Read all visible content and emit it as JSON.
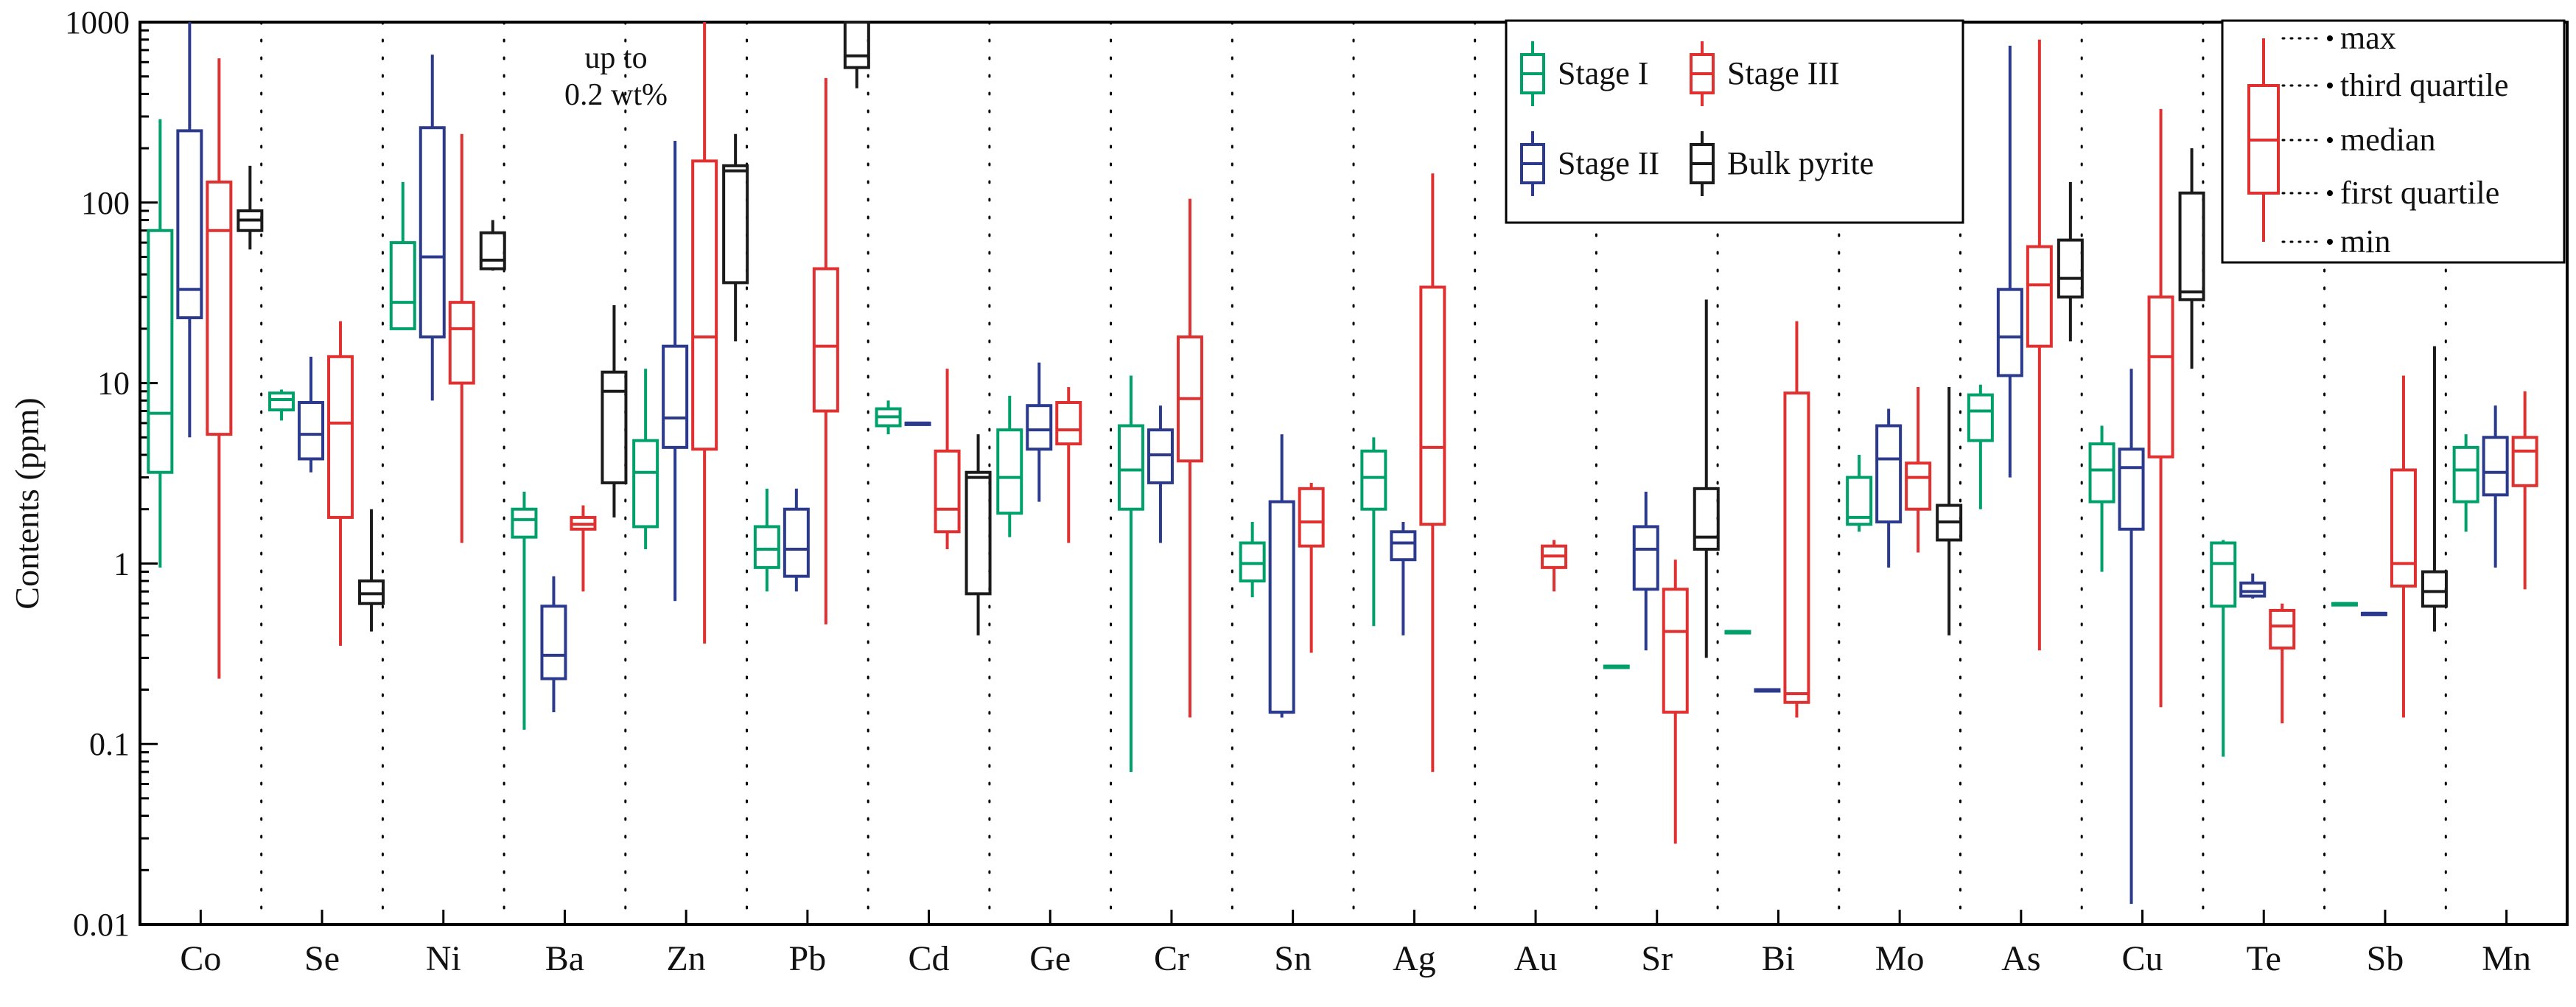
{
  "chart_data": {
    "type": "boxplot",
    "title": "",
    "ylabel": "Contents (ppm)",
    "xlabel": "",
    "yscale": "log",
    "ylim": [
      0.01,
      1000
    ],
    "yticks": [
      {
        "value": 0.01,
        "label": "0.01"
      },
      {
        "value": 0.1,
        "label": "0.1"
      },
      {
        "value": 1,
        "label": "1"
      },
      {
        "value": 10,
        "label": "10"
      },
      {
        "value": 100,
        "label": "100"
      },
      {
        "value": 1000,
        "label": "1000"
      }
    ],
    "categories": [
      "Co",
      "Se",
      "Ni",
      "Ba",
      "Zn",
      "Pb",
      "Cd",
      "Ge",
      "Cr",
      "Sn",
      "Ag",
      "Au",
      "Sr",
      "Bi",
      "Mo",
      "As",
      "Cu",
      "Te",
      "Sb",
      "Mn"
    ],
    "series": [
      {
        "name": "Stage I",
        "legend_label": "Stage I",
        "color": "#00a06a",
        "slot": 0,
        "values": [
          {
            "cat": "Co",
            "min": 0.95,
            "q1": 3.2,
            "median": 6.8,
            "q3": 70,
            "max": 290
          },
          {
            "cat": "Se",
            "min": 6.2,
            "q1": 7.1,
            "median": 8.1,
            "q3": 8.8,
            "max": 9.2
          },
          {
            "cat": "Ni",
            "min": 20,
            "q1": 20,
            "median": 28,
            "q3": 60,
            "max": 130
          },
          {
            "cat": "Ba",
            "min": 0.12,
            "q1": 1.4,
            "median": 1.75,
            "q3": 2.0,
            "max": 2.5
          },
          {
            "cat": "Zn",
            "min": 1.2,
            "q1": 1.6,
            "median": 3.2,
            "q3": 4.8,
            "max": 12
          },
          {
            "cat": "Pb",
            "min": 0.7,
            "q1": 0.95,
            "median": 1.2,
            "q3": 1.6,
            "max": 2.6
          },
          {
            "cat": "Cd",
            "min": 5.2,
            "q1": 5.8,
            "median": 6.5,
            "q3": 7.2,
            "max": 8.0
          },
          {
            "cat": "Ge",
            "min": 1.4,
            "q1": 1.9,
            "median": 3.0,
            "q3": 5.5,
            "max": 8.5
          },
          {
            "cat": "Cr",
            "min": 0.07,
            "q1": 2.0,
            "median": 3.3,
            "q3": 5.8,
            "max": 11
          },
          {
            "cat": "Sn",
            "min": 0.65,
            "q1": 0.8,
            "median": 1.0,
            "q3": 1.3,
            "max": 1.7
          },
          {
            "cat": "Ag",
            "min": 0.45,
            "q1": 2.0,
            "median": 3.0,
            "q3": 4.2,
            "max": 5.0
          },
          {
            "cat": "Sr",
            "min": 0.27,
            "q1": 0.27,
            "median": 0.27,
            "q3": 0.27,
            "max": 0.27
          },
          {
            "cat": "Bi",
            "min": 0.42,
            "q1": 0.42,
            "median": 0.42,
            "q3": 0.42,
            "max": 0.42
          },
          {
            "cat": "Mo",
            "min": 1.5,
            "q1": 1.65,
            "median": 1.8,
            "q3": 3.0,
            "max": 4.0
          },
          {
            "cat": "As",
            "min": 2.0,
            "q1": 4.8,
            "median": 7.0,
            "q3": 8.6,
            "max": 9.8
          },
          {
            "cat": "Cu",
            "min": 0.9,
            "q1": 2.2,
            "median": 3.3,
            "q3": 4.6,
            "max": 5.8
          },
          {
            "cat": "Te",
            "min": 0.085,
            "q1": 0.58,
            "median": 1.0,
            "q3": 1.3,
            "max": 1.35
          },
          {
            "cat": "Sb",
            "min": 0.6,
            "q1": 0.6,
            "median": 0.6,
            "q3": 0.6,
            "max": 0.6
          },
          {
            "cat": "Mn",
            "min": 1.5,
            "q1": 2.2,
            "median": 3.3,
            "q3": 4.4,
            "max": 5.2
          }
        ]
      },
      {
        "name": "Stage II",
        "legend_label": "Stage II",
        "color": "#2b3a8c",
        "slot": 1,
        "values": [
          {
            "cat": "Co",
            "min": 5,
            "q1": 23,
            "median": 33,
            "q3": 250,
            "max": 1000
          },
          {
            "cat": "Se",
            "min": 3.2,
            "q1": 3.8,
            "median": 5.2,
            "q3": 7.8,
            "max": 14
          },
          {
            "cat": "Ni",
            "min": 8,
            "q1": 18,
            "median": 50,
            "q3": 260,
            "max": 660
          },
          {
            "cat": "Ba",
            "min": 0.15,
            "q1": 0.23,
            "median": 0.31,
            "q3": 0.58,
            "max": 0.85
          },
          {
            "cat": "Zn",
            "min": 0.62,
            "q1": 4.4,
            "median": 6.4,
            "q3": 16,
            "max": 220
          },
          {
            "cat": "Pb",
            "min": 0.7,
            "q1": 0.85,
            "median": 1.2,
            "q3": 2.0,
            "max": 2.6
          },
          {
            "cat": "Cd",
            "min": 5.8,
            "q1": 5.9,
            "median": 6.0,
            "q3": 6.0,
            "max": 6.0
          },
          {
            "cat": "Ge",
            "min": 2.2,
            "q1": 4.3,
            "median": 5.5,
            "q3": 7.5,
            "max": 13
          },
          {
            "cat": "Cr",
            "min": 1.3,
            "q1": 2.8,
            "median": 4.0,
            "q3": 5.5,
            "max": 7.5
          },
          {
            "cat": "Sn",
            "min": 0.14,
            "q1": 0.15,
            "median": 0.15,
            "q3": 2.2,
            "max": 5.2
          },
          {
            "cat": "Ag",
            "min": 0.4,
            "q1": 1.05,
            "median": 1.3,
            "q3": 1.5,
            "max": 1.7
          },
          {
            "cat": "Sr",
            "min": 0.33,
            "q1": 0.72,
            "median": 1.2,
            "q3": 1.6,
            "max": 2.5
          },
          {
            "cat": "Bi",
            "min": 0.2,
            "q1": 0.2,
            "median": 0.2,
            "q3": 0.2,
            "max": 0.2
          },
          {
            "cat": "Mo",
            "min": 0.95,
            "q1": 1.7,
            "median": 3.8,
            "q3": 5.8,
            "max": 7.2
          },
          {
            "cat": "As",
            "min": 3.0,
            "q1": 11,
            "median": 18,
            "q3": 33,
            "max": 740
          },
          {
            "cat": "Cu",
            "min": 0.013,
            "q1": 1.55,
            "median": 3.4,
            "q3": 4.3,
            "max": 12
          },
          {
            "cat": "Te",
            "min": 0.64,
            "q1": 0.66,
            "median": 0.7,
            "q3": 0.78,
            "max": 0.88
          },
          {
            "cat": "Sb",
            "min": 0.53,
            "q1": 0.53,
            "median": 0.53,
            "q3": 0.53,
            "max": 0.53
          },
          {
            "cat": "Mn",
            "min": 0.95,
            "q1": 2.4,
            "median": 3.2,
            "q3": 5.0,
            "max": 7.5
          }
        ]
      },
      {
        "name": "Stage III",
        "legend_label": "Stage III",
        "color": "#e03030",
        "slot": 2,
        "values": [
          {
            "cat": "Co",
            "min": 0.23,
            "q1": 5.2,
            "median": 70,
            "q3": 130,
            "max": 630
          },
          {
            "cat": "Se",
            "min": 0.35,
            "q1": 1.8,
            "median": 6.0,
            "q3": 14,
            "max": 22
          },
          {
            "cat": "Ni",
            "min": 1.3,
            "q1": 10,
            "median": 20,
            "q3": 28,
            "max": 240
          },
          {
            "cat": "Ba",
            "min": 0.7,
            "q1": 1.55,
            "median": 1.65,
            "q3": 1.8,
            "max": 2.1
          },
          {
            "cat": "Zn",
            "min": 0.36,
            "q1": 4.3,
            "median": 18,
            "q3": 170,
            "max": 1000
          },
          {
            "cat": "Pb",
            "min": 0.46,
            "q1": 7.0,
            "median": 16,
            "q3": 43,
            "max": 490
          },
          {
            "cat": "Cd",
            "min": 1.2,
            "q1": 1.5,
            "median": 2.0,
            "q3": 4.2,
            "max": 12
          },
          {
            "cat": "Ge",
            "min": 1.3,
            "q1": 4.6,
            "median": 5.5,
            "q3": 7.8,
            "max": 9.5
          },
          {
            "cat": "Cr",
            "min": 0.14,
            "q1": 3.7,
            "median": 8.2,
            "q3": 18,
            "max": 105
          },
          {
            "cat": "Sn",
            "min": 0.32,
            "q1": 1.25,
            "median": 1.7,
            "q3": 2.6,
            "max": 2.8
          },
          {
            "cat": "Ag",
            "min": 0.07,
            "q1": 1.65,
            "median": 4.4,
            "q3": 34,
            "max": 145
          },
          {
            "cat": "Au",
            "min": 0.7,
            "q1": 0.95,
            "median": 1.1,
            "q3": 1.25,
            "max": 1.35
          },
          {
            "cat": "Sr",
            "min": 0.028,
            "q1": 0.15,
            "median": 0.42,
            "q3": 0.72,
            "max": 1.05
          },
          {
            "cat": "Bi",
            "min": 0.14,
            "q1": 0.17,
            "median": 0.19,
            "q3": 8.8,
            "max": 22
          },
          {
            "cat": "Mo",
            "min": 1.15,
            "q1": 2.0,
            "median": 3.0,
            "q3": 3.6,
            "max": 9.5
          },
          {
            "cat": "As",
            "min": 0.33,
            "q1": 16,
            "median": 35,
            "q3": 57,
            "max": 800
          },
          {
            "cat": "Cu",
            "min": 0.16,
            "q1": 3.9,
            "median": 14,
            "q3": 30,
            "max": 330
          },
          {
            "cat": "Te",
            "min": 0.13,
            "q1": 0.34,
            "median": 0.45,
            "q3": 0.55,
            "max": 0.6
          },
          {
            "cat": "Sb",
            "min": 0.14,
            "q1": 0.75,
            "median": 1.0,
            "q3": 3.3,
            "max": 11
          },
          {
            "cat": "Mn",
            "min": 0.72,
            "q1": 2.7,
            "median": 4.2,
            "q3": 5.0,
            "max": 9.0
          }
        ]
      },
      {
        "name": "Bulk pyrite",
        "legend_label": "Bulk pyrite",
        "color": "#1a1a1a",
        "slot": 3,
        "values": [
          {
            "cat": "Co",
            "min": 55,
            "q1": 70,
            "median": 80,
            "q3": 90,
            "max": 160
          },
          {
            "cat": "Se",
            "min": 0.42,
            "q1": 0.6,
            "median": 0.68,
            "q3": 0.8,
            "max": 2.0
          },
          {
            "cat": "Ni",
            "min": 42,
            "q1": 43,
            "median": 48,
            "q3": 68,
            "max": 80
          },
          {
            "cat": "Ba",
            "min": 1.8,
            "q1": 2.8,
            "median": 9.0,
            "q3": 11.5,
            "max": 27
          },
          {
            "cat": "Zn",
            "min": 17,
            "q1": 36,
            "median": 150,
            "q3": 160,
            "max": 240
          },
          {
            "cat": "Pb",
            "min": 430,
            "q1": 560,
            "median": 650,
            "q3": 1000,
            "max": 1000
          },
          {
            "cat": "Cd",
            "min": 0.4,
            "q1": 0.68,
            "median": 3.0,
            "q3": 3.2,
            "max": 5.2
          },
          {
            "cat": "Sr",
            "min": 0.3,
            "q1": 1.2,
            "median": 1.4,
            "q3": 2.6,
            "max": 29
          },
          {
            "cat": "Mo",
            "min": 0.4,
            "q1": 1.35,
            "median": 1.7,
            "q3": 2.1,
            "max": 9.5
          },
          {
            "cat": "As",
            "min": 17,
            "q1": 30,
            "median": 38,
            "q3": 62,
            "max": 130
          },
          {
            "cat": "Cu",
            "min": 12,
            "q1": 29,
            "median": 32,
            "q3": 113,
            "max": 200
          },
          {
            "cat": "Sb",
            "min": 0.42,
            "q1": 0.58,
            "median": 0.7,
            "q3": 0.9,
            "max": 16
          }
        ]
      }
    ],
    "annotations": [
      {
        "text_lines": [
          "up to",
          "0.2 wt%"
        ],
        "near": "Zn"
      }
    ],
    "legend": {
      "placement": "top-right",
      "entries": [
        "Stage I",
        "Stage III",
        "Stage II",
        "Bulk pyrite"
      ]
    },
    "key_legend": {
      "placement": "top-right",
      "labels": [
        "max",
        "third quartile",
        "median",
        "first quartile",
        "min"
      ],
      "color": "#e03030"
    }
  }
}
